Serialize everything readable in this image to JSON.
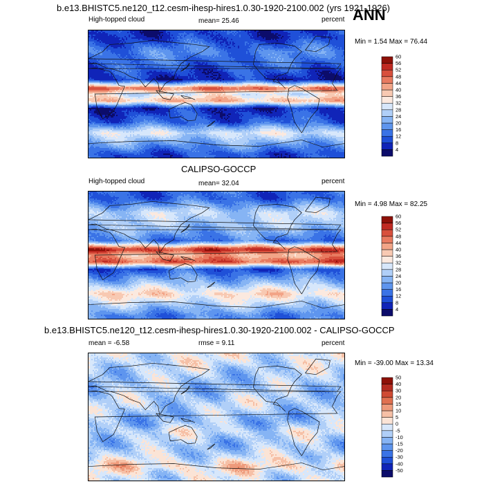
{
  "page": {
    "top_title": "b.e13.BHISTC5.ne120_t12.cesm-ihesp-hires1.0.30-1920-2100.002 (yrs 1921-1926)",
    "season": "ANN"
  },
  "colors": {
    "seq_scale": [
      "#0c0c6b",
      "#1024b8",
      "#1f50d8",
      "#3a73e6",
      "#5e95ee",
      "#86b4f4",
      "#b0cff8",
      "#d7e7fb",
      "#fbe9df",
      "#f8c9b2",
      "#f2a487",
      "#e87a60",
      "#d8503d",
      "#c02a22",
      "#8e1108"
    ],
    "div_scale": [
      "#0c0c6b",
      "#1024b8",
      "#1f50d8",
      "#3a73e6",
      "#5e95ee",
      "#86b4f4",
      "#b0cff8",
      "#d7e7fb",
      "#fbe4d6",
      "#f6c0a6",
      "#ee9a7b",
      "#e07050",
      "#cf4a33",
      "#b42b20",
      "#8e1108"
    ]
  },
  "panels": [
    {
      "id": "model",
      "left_label": "High-topped cloud",
      "mean_text": "mean=  25.46",
      "units": "percent",
      "minmax": "Min =   1.54 Max =  76.44",
      "colorbar_ticks": [
        "4",
        "8",
        "12",
        "16",
        "20",
        "24",
        "28",
        "32",
        "36",
        "40",
        "44",
        "48",
        "52",
        "56",
        "60"
      ]
    },
    {
      "id": "obs",
      "title": "CALIPSO-GOCCP",
      "left_label": "High-topped cloud",
      "mean_text": "mean=  32.04",
      "units": "percent",
      "minmax": "Min =   4.98 Max =  82.25",
      "colorbar_ticks": [
        "4",
        "8",
        "12",
        "16",
        "20",
        "24",
        "28",
        "32",
        "36",
        "40",
        "44",
        "48",
        "52",
        "56",
        "60"
      ]
    },
    {
      "id": "diff",
      "title": "b.e13.BHISTC5.ne120_t12.cesm-ihesp-hires1.0.30-1920-2100.002 - CALIPSO-GOCCP",
      "left_label": "mean =  -6.58",
      "mean_text": "rmse =   9.11",
      "units": "percent",
      "minmax": "Min = -39.00 Max =  13.34",
      "colorbar_ticks": [
        "-50",
        "-40",
        "-30",
        "-20",
        "-15",
        "-10",
        "-5",
        "0",
        "5",
        "10",
        "15",
        "20",
        "30",
        "40",
        "50"
      ]
    }
  ],
  "chart_data": [
    {
      "type": "heatmap",
      "title": "",
      "subtitle": "High-topped cloud",
      "units": "percent",
      "mean": 25.46,
      "min": 1.54,
      "max": 76.44,
      "levels": [
        4,
        8,
        12,
        16,
        20,
        24,
        28,
        32,
        36,
        40,
        44,
        48,
        52,
        56,
        60
      ],
      "bands": [
        {
          "lat": 80,
          "value": 8
        },
        {
          "lat": 60,
          "value": 16
        },
        {
          "lat": 40,
          "value": 12
        },
        {
          "lat": 20,
          "value": 6
        },
        {
          "lat": 8,
          "value": 48
        },
        {
          "lat": 0,
          "value": 30
        },
        {
          "lat": -10,
          "value": 40
        },
        {
          "lat": -20,
          "value": 6
        },
        {
          "lat": -40,
          "value": 12
        },
        {
          "lat": -55,
          "value": 30
        },
        {
          "lat": -70,
          "value": 20
        },
        {
          "lat": -85,
          "value": 10
        }
      ]
    },
    {
      "type": "heatmap",
      "title": "CALIPSO-GOCCP",
      "subtitle": "High-topped cloud",
      "units": "percent",
      "mean": 32.04,
      "min": 4.98,
      "max": 82.25,
      "levels": [
        4,
        8,
        12,
        16,
        20,
        24,
        28,
        32,
        36,
        40,
        44,
        48,
        52,
        56,
        60
      ],
      "bands": [
        {
          "lat": 80,
          "value": 12
        },
        {
          "lat": 60,
          "value": 28
        },
        {
          "lat": 40,
          "value": 24
        },
        {
          "lat": 20,
          "value": 14
        },
        {
          "lat": 8,
          "value": 54
        },
        {
          "lat": 0,
          "value": 40
        },
        {
          "lat": -10,
          "value": 50
        },
        {
          "lat": -20,
          "value": 10
        },
        {
          "lat": -40,
          "value": 24
        },
        {
          "lat": -55,
          "value": 36
        },
        {
          "lat": -70,
          "value": 26
        },
        {
          "lat": -85,
          "value": 16
        }
      ]
    },
    {
      "type": "heatmap",
      "title": "b.e13.BHISTC5.ne120_t12.cesm-ihesp-hires1.0.30-1920-2100.002 - CALIPSO-GOCCP",
      "units": "percent",
      "mean": -6.58,
      "rmse": 9.11,
      "min": -39.0,
      "max": 13.34,
      "levels": [
        -50,
        -40,
        -30,
        -20,
        -15,
        -10,
        -5,
        0,
        5,
        10,
        15,
        20,
        30,
        40,
        50
      ],
      "bands": [
        {
          "lat": 80,
          "value": -3
        },
        {
          "lat": 60,
          "value": -8
        },
        {
          "lat": 40,
          "value": -10
        },
        {
          "lat": 20,
          "value": -6
        },
        {
          "lat": 8,
          "value": -8
        },
        {
          "lat": 0,
          "value": -12
        },
        {
          "lat": -10,
          "value": -10
        },
        {
          "lat": -20,
          "value": -4
        },
        {
          "lat": -40,
          "value": -10
        },
        {
          "lat": -55,
          "value": -6
        },
        {
          "lat": -70,
          "value": 4
        },
        {
          "lat": -85,
          "value": -4
        }
      ]
    }
  ]
}
